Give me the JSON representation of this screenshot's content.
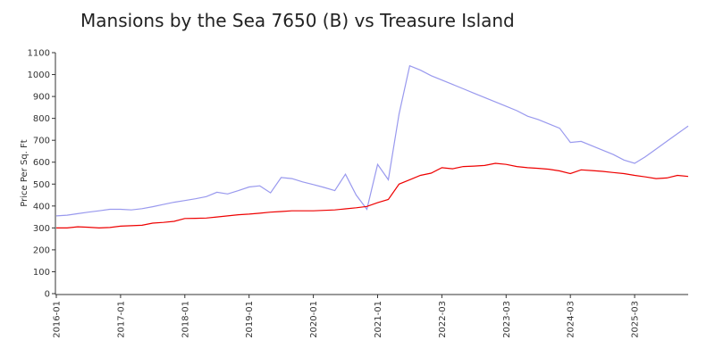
{
  "chart_data": {
    "type": "line",
    "title": "Mansions by the Sea 7650 (B) vs Treasure Island",
    "y_label": "Price Per Sq. Ft",
    "categories": [
      "2016-01",
      null,
      null,
      null,
      null,
      null,
      "2017-01",
      null,
      null,
      null,
      null,
      null,
      "2018-01",
      null,
      null,
      null,
      null,
      null,
      "2019-01",
      null,
      null,
      null,
      null,
      null,
      "2020-01",
      null,
      null,
      null,
      null,
      null,
      "2021-01",
      null,
      null,
      null,
      null,
      null,
      "2022-03",
      null,
      null,
      null,
      null,
      null,
      "2023-03",
      null,
      null,
      null,
      null,
      null,
      "2024-03",
      null,
      null,
      null,
      null,
      null,
      "2025-03",
      null,
      null,
      null,
      null,
      null
    ],
    "series": [
      {
        "color": "#9999ee",
        "values": [
          355,
          358,
          365,
          372,
          378,
          385,
          385,
          382,
          388,
          397,
          407,
          417,
          425,
          433,
          443,
          463,
          455,
          470,
          487,
          492,
          460,
          530,
          525,
          510,
          498,
          485,
          470,
          545,
          450,
          385,
          590,
          520,
          820,
          1040,
          1020,
          995,
          975,
          955,
          935,
          915,
          895,
          875,
          855,
          835,
          810,
          795,
          775,
          755,
          690,
          695,
          675,
          655,
          635,
          610,
          595,
          625,
          660,
          695,
          730,
          765
        ]
      },
      {
        "color": "#ee0000",
        "values": [
          300,
          300,
          305,
          303,
          300,
          302,
          308,
          310,
          312,
          322,
          325,
          330,
          343,
          344,
          345,
          350,
          355,
          360,
          363,
          367,
          372,
          375,
          378,
          378,
          378,
          380,
          382,
          387,
          392,
          398,
          415,
          430,
          500,
          520,
          540,
          550,
          575,
          570,
          580,
          582,
          585,
          595,
          590,
          580,
          575,
          572,
          568,
          560,
          548,
          565,
          562,
          558,
          553,
          548,
          540,
          533,
          525,
          528,
          540,
          535
        ]
      }
    ],
    "ylim": [
      0,
      1100
    ],
    "yticks": [
      0,
      100,
      200,
      300,
      400,
      500,
      600,
      700,
      800,
      900,
      1000,
      1100
    ]
  }
}
